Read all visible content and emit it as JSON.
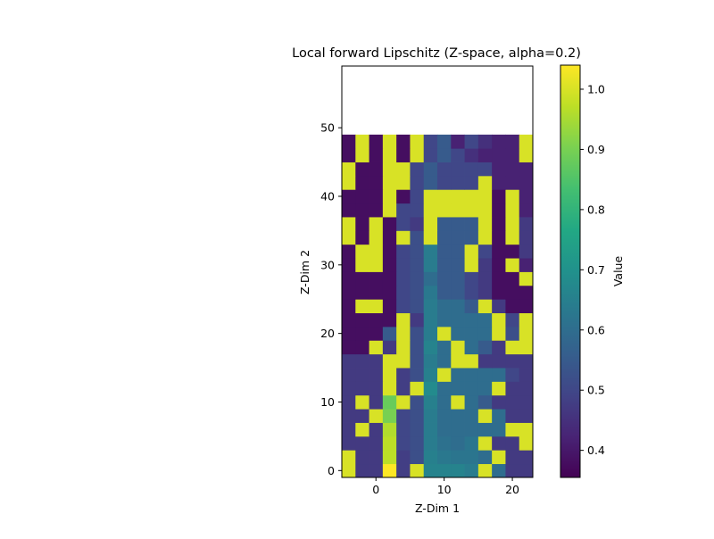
{
  "chart_data": {
    "type": "heatmap",
    "title": "Local forward Lipschitz (Z-space, alpha=0.2)",
    "xlabel": "Z-Dim 1",
    "ylabel": "Z-Dim 2",
    "colorbar_label": "Value",
    "colormap": "viridis",
    "x_start": -4,
    "x_step": 2,
    "y_start": 0,
    "y_step": 2,
    "xlim": [
      -5,
      23
    ],
    "ylim": [
      -1,
      59
    ],
    "clim": [
      0.355,
      1.04
    ],
    "x_ticks": [
      0,
      10,
      20
    ],
    "y_ticks": [
      0,
      10,
      20,
      30,
      40,
      50
    ],
    "colorbar_ticks": [
      0.4,
      0.5,
      0.6,
      0.7,
      0.8,
      0.9,
      1.0
    ],
    "grid": false,
    "z": [
      [
        1.0,
        0.47,
        0.47,
        1.04,
        0.48,
        1.0,
        0.66,
        0.66,
        0.66,
        0.64,
        1.0,
        0.6,
        0.47,
        0.47
      ],
      [
        1.0,
        0.47,
        0.47,
        0.97,
        0.48,
        0.52,
        0.65,
        0.63,
        0.62,
        0.62,
        0.6,
        1.0,
        0.47,
        0.47
      ],
      [
        0.47,
        0.47,
        0.47,
        0.97,
        0.5,
        0.52,
        0.64,
        0.61,
        0.6,
        0.62,
        1.0,
        0.47,
        0.47,
        1.0
      ],
      [
        0.47,
        1.0,
        0.47,
        0.96,
        0.5,
        0.52,
        0.64,
        0.6,
        0.6,
        0.6,
        0.6,
        0.6,
        1.0,
        1.0
      ],
      [
        0.47,
        0.47,
        1.0,
        0.9,
        0.5,
        0.52,
        0.64,
        0.6,
        0.6,
        0.6,
        1.0,
        0.6,
        0.47,
        0.47
      ],
      [
        0.47,
        1.0,
        0.47,
        0.88,
        1.0,
        0.52,
        0.65,
        0.6,
        1.0,
        0.6,
        0.55,
        0.47,
        0.47,
        0.47
      ],
      [
        0.47,
        0.47,
        0.47,
        1.0,
        0.48,
        1.0,
        0.68,
        0.6,
        0.6,
        0.6,
        0.6,
        1.0,
        0.47,
        0.47
      ],
      [
        0.47,
        0.47,
        0.47,
        1.0,
        0.48,
        0.52,
        0.65,
        1.0,
        0.6,
        0.6,
        0.6,
        0.6,
        0.5,
        0.47
      ],
      [
        0.47,
        0.47,
        0.47,
        1.0,
        1.0,
        0.52,
        0.64,
        0.6,
        1.0,
        1.0,
        0.47,
        0.47,
        0.47,
        0.47
      ],
      [
        0.38,
        0.38,
        1.0,
        0.47,
        1.0,
        0.52,
        0.66,
        0.6,
        1.0,
        0.6,
        0.55,
        0.47,
        1.0,
        1.0
      ],
      [
        0.38,
        0.38,
        0.38,
        0.55,
        1.0,
        0.52,
        0.64,
        1.0,
        0.6,
        0.6,
        0.6,
        1.0,
        0.52,
        1.0
      ],
      [
        0.38,
        0.38,
        0.38,
        0.38,
        1.0,
        0.47,
        0.64,
        0.6,
        0.6,
        0.6,
        0.6,
        1.0,
        0.5,
        1.0
      ],
      [
        0.38,
        1.0,
        1.0,
        0.38,
        0.5,
        0.52,
        0.64,
        0.6,
        0.6,
        0.55,
        1.0,
        0.47,
        0.38,
        0.38
      ],
      [
        0.38,
        0.38,
        0.38,
        0.38,
        0.5,
        0.52,
        0.63,
        0.55,
        0.55,
        0.5,
        0.47,
        0.38,
        0.38,
        0.38
      ],
      [
        0.38,
        0.38,
        0.38,
        0.38,
        0.5,
        0.52,
        0.6,
        0.55,
        0.55,
        0.5,
        0.47,
        0.38,
        0.38,
        1.0
      ],
      [
        0.38,
        1.0,
        1.0,
        0.38,
        0.5,
        0.52,
        0.64,
        0.55,
        0.55,
        1.0,
        0.47,
        0.38,
        1.0,
        0.42
      ],
      [
        0.38,
        1.0,
        1.0,
        0.38,
        0.5,
        0.52,
        0.64,
        0.55,
        0.55,
        1.0,
        0.5,
        0.38,
        0.38,
        0.47
      ],
      [
        1.0,
        0.38,
        1.0,
        0.38,
        1.0,
        0.52,
        1.0,
        0.55,
        0.55,
        0.55,
        1.0,
        0.38,
        1.0,
        0.47
      ],
      [
        1.0,
        0.38,
        1.0,
        0.38,
        0.5,
        0.47,
        1.0,
        0.55,
        0.55,
        0.55,
        1.0,
        0.38,
        1.0,
        0.47
      ],
      [
        0.38,
        0.38,
        0.38,
        1.0,
        0.5,
        0.5,
        1.0,
        1.0,
        1.0,
        1.0,
        1.0,
        0.38,
        1.0,
        0.42
      ],
      [
        0.38,
        0.38,
        0.38,
        1.0,
        0.38,
        0.5,
        1.0,
        1.0,
        1.0,
        1.0,
        1.0,
        0.38,
        1.0,
        0.42
      ],
      [
        1.0,
        0.38,
        0.38,
        1.0,
        1.0,
        0.5,
        0.55,
        0.5,
        0.5,
        0.5,
        1.0,
        0.42,
        0.42,
        0.42
      ],
      [
        1.0,
        0.38,
        0.38,
        1.0,
        1.0,
        0.5,
        0.55,
        0.5,
        0.5,
        0.5,
        0.5,
        0.42,
        0.42,
        0.42
      ],
      [
        0.38,
        1.0,
        0.38,
        1.0,
        0.38,
        1.0,
        0.5,
        0.55,
        0.5,
        0.45,
        0.42,
        0.42,
        0.42,
        1.0
      ],
      [
        0.38,
        1.0,
        0.38,
        1.0,
        0.38,
        1.0,
        0.5,
        0.55,
        0.42,
        0.5,
        0.45,
        0.42,
        0.42,
        1.0
      ]
    ]
  }
}
